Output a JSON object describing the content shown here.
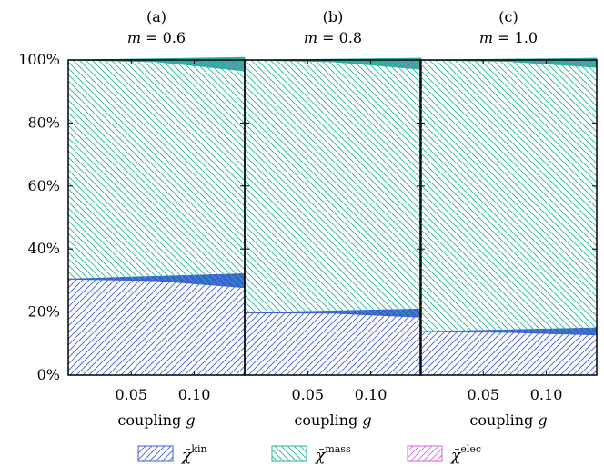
{
  "colors": {
    "kin": "#3f5fd6",
    "mass": "#23b29a",
    "elec": "#d463d6",
    "frame": "#000000"
  },
  "chart_data": {
    "type": "area",
    "stacked": true,
    "y_format": "percent",
    "ylim": [
      0,
      100
    ],
    "y_ticks": [
      0,
      20,
      40,
      60,
      80,
      100
    ],
    "y_tick_labels": [
      "0%",
      "20%",
      "40%",
      "60%",
      "80%",
      "100%"
    ],
    "xlim": [
      0,
      0.14
    ],
    "x_ticks": [
      0.05,
      0.1
    ],
    "x_tick_labels": [
      "0.05",
      "0.10"
    ],
    "legend": {
      "placement": "bottom",
      "entries": [
        {
          "key": "kin",
          "base": "χ̄",
          "sup": "kin"
        },
        {
          "key": "mass",
          "base": "χ̄",
          "sup": "mass"
        },
        {
          "key": "elec",
          "base": "χ̄",
          "sup": "elec"
        }
      ]
    },
    "panels": [
      {
        "letter": "(a)",
        "param": "m = 0.6",
        "xlabel": "coupling g",
        "x": [
          0,
          0.07,
          0.14
        ],
        "series": [
          {
            "key": "kin",
            "values": [
              30.5,
              30.0,
              27.8
            ]
          },
          {
            "key": "mass",
            "values": [
              69.5,
              69.5,
              68.8
            ]
          },
          {
            "key": "elec",
            "values": [
              0.0,
              0.5,
              3.4
            ]
          }
        ]
      },
      {
        "letter": "(b)",
        "param": "m = 0.8",
        "xlabel": "coupling g",
        "x": [
          0,
          0.07,
          0.14
        ],
        "series": [
          {
            "key": "kin",
            "values": [
              19.8,
              19.7,
              18.4
            ]
          },
          {
            "key": "mass",
            "values": [
              80.2,
              79.8,
              78.7
            ]
          },
          {
            "key": "elec",
            "values": [
              0.0,
              0.5,
              2.9
            ]
          }
        ]
      },
      {
        "letter": "(c)",
        "param": "m = 1.0",
        "xlabel": "coupling g",
        "x": [
          0,
          0.07,
          0.14
        ],
        "series": [
          {
            "key": "kin",
            "values": [
              13.8,
              13.6,
              12.8
            ]
          },
          {
            "key": "mass",
            "values": [
              86.2,
              86.0,
              84.9
            ]
          },
          {
            "key": "elec",
            "values": [
              0.0,
              0.4,
              2.3
            ]
          }
        ]
      }
    ]
  }
}
